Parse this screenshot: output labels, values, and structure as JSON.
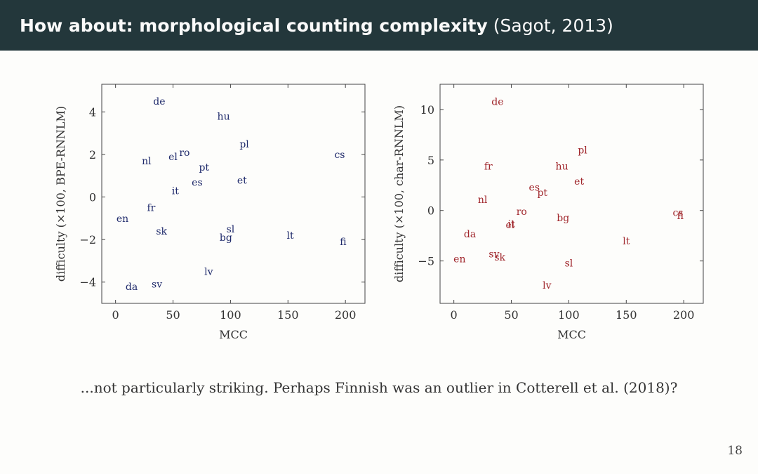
{
  "slide": {
    "title_bold": "How about: morphological counting complexity",
    "title_cite": "(Sagot, 2013)",
    "caption": "...not particularly striking. Perhaps Finnish was an outlier in Cotterell et al. (2018)?",
    "page_number": "18"
  },
  "chart_data": [
    {
      "type": "scatter",
      "xlabel": "MCC",
      "ylabel": "difficulty (×100, BPE-RNNLM)",
      "xlim": [
        -12,
        217
      ],
      "ylim": [
        -5.0,
        5.3
      ],
      "xticks": [
        0,
        50,
        100,
        150,
        200
      ],
      "yticks": [
        -4,
        -2,
        0,
        2,
        4
      ],
      "ytick_labels": [
        "−4",
        "−2",
        "0",
        "2",
        "4"
      ],
      "grid": false,
      "color": "#1f2a6b",
      "points": [
        {
          "label": "de",
          "x": 38,
          "y": 4.5
        },
        {
          "label": "hu",
          "x": 94,
          "y": 3.8
        },
        {
          "label": "pl",
          "x": 112,
          "y": 2.5
        },
        {
          "label": "cs",
          "x": 195,
          "y": 2.0
        },
        {
          "label": "nl",
          "x": 27,
          "y": 1.7
        },
        {
          "label": "el",
          "x": 50,
          "y": 1.9
        },
        {
          "label": "ro",
          "x": 60,
          "y": 2.1
        },
        {
          "label": "pt",
          "x": 77,
          "y": 1.4
        },
        {
          "label": "es",
          "x": 71,
          "y": 0.7
        },
        {
          "label": "et",
          "x": 110,
          "y": 0.8
        },
        {
          "label": "it",
          "x": 52,
          "y": 0.3
        },
        {
          "label": "fr",
          "x": 31,
          "y": -0.5
        },
        {
          "label": "en",
          "x": 6,
          "y": -1.0
        },
        {
          "label": "sk",
          "x": 40,
          "y": -1.6
        },
        {
          "label": "sl",
          "x": 100,
          "y": -1.5
        },
        {
          "label": "bg",
          "x": 96,
          "y": -1.9
        },
        {
          "label": "lt",
          "x": 152,
          "y": -1.8
        },
        {
          "label": "fi",
          "x": 198,
          "y": -2.1
        },
        {
          "label": "lv",
          "x": 81,
          "y": -3.5
        },
        {
          "label": "da",
          "x": 14,
          "y": -4.2
        },
        {
          "label": "sv",
          "x": 36,
          "y": -4.1
        }
      ]
    },
    {
      "type": "scatter",
      "xlabel": "MCC",
      "ylabel": "difficulty (×100, char-RNNLM)",
      "xlim": [
        -12,
        217
      ],
      "ylim": [
        -9.2,
        12.5
      ],
      "xticks": [
        0,
        50,
        100,
        150,
        200
      ],
      "yticks": [
        -5,
        0,
        5,
        10
      ],
      "ytick_labels": [
        "−5",
        "0",
        "5",
        "10"
      ],
      "grid": false,
      "color": "#a0262b",
      "points": [
        {
          "label": "de",
          "x": 38,
          "y": 10.8
        },
        {
          "label": "pl",
          "x": 112,
          "y": 6.0
        },
        {
          "label": "fr",
          "x": 30,
          "y": 4.4
        },
        {
          "label": "hu",
          "x": 94,
          "y": 4.4
        },
        {
          "label": "et",
          "x": 109,
          "y": 2.9
        },
        {
          "label": "es",
          "x": 70,
          "y": 2.3
        },
        {
          "label": "pt",
          "x": 77,
          "y": 1.8
        },
        {
          "label": "nl",
          "x": 25,
          "y": 1.1
        },
        {
          "label": "ro",
          "x": 59,
          "y": -0.1
        },
        {
          "label": "cs",
          "x": 195,
          "y": -0.2
        },
        {
          "label": "fi",
          "x": 197,
          "y": -0.5
        },
        {
          "label": "bg",
          "x": 95,
          "y": -0.7
        },
        {
          "label": "el",
          "x": 49,
          "y": -1.4
        },
        {
          "label": "it",
          "x": 50,
          "y": -1.3
        },
        {
          "label": "da",
          "x": 14,
          "y": -2.3
        },
        {
          "label": "lt",
          "x": 150,
          "y": -3.0
        },
        {
          "label": "sv",
          "x": 35,
          "y": -4.3
        },
        {
          "label": "sk",
          "x": 40,
          "y": -4.6
        },
        {
          "label": "en",
          "x": 5,
          "y": -4.8
        },
        {
          "label": "sl",
          "x": 100,
          "y": -5.2
        },
        {
          "label": "lv",
          "x": 81,
          "y": -7.4
        }
      ]
    }
  ]
}
